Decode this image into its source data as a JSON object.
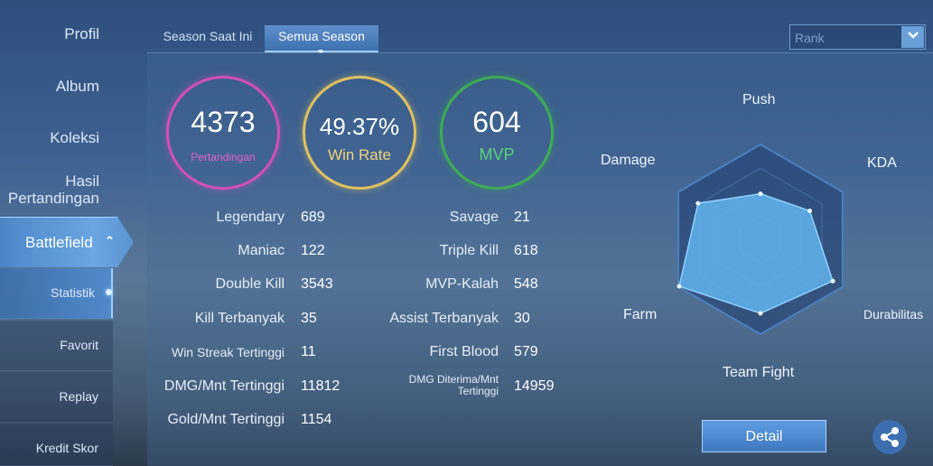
{
  "sidebar": {
    "profil": "Profil",
    "album": "Album",
    "koleksi": "Koleksi",
    "hasil": "Hasil Pertandingan",
    "battlefield": "Battlefield",
    "sub": {
      "statistik": "Statistik",
      "favorit": "Favorit",
      "replay": "Replay",
      "kredit": "Kredit Skor"
    }
  },
  "tabs": {
    "current": "Season Saat Ini",
    "all": "Semua Season"
  },
  "dropdown": {
    "value": "Rank"
  },
  "summary": {
    "matches": {
      "value": "4373",
      "label": "Pertandingan"
    },
    "winrate": {
      "value": "49.37%",
      "label": "Win Rate"
    },
    "mvp": {
      "value": "604",
      "label": "MVP"
    }
  },
  "stats_left": [
    {
      "label": "Legendary",
      "value": "689"
    },
    {
      "label": "Maniac",
      "value": "122"
    },
    {
      "label": "Double Kill",
      "value": "3543"
    },
    {
      "label": "Kill Terbanyak",
      "value": "35"
    },
    {
      "label": "Win Streak Tertinggi",
      "value": "11"
    },
    {
      "label": "DMG/Mnt Tertinggi",
      "value": "11812"
    },
    {
      "label": "Gold/Mnt Tertinggi",
      "value": "1154"
    }
  ],
  "stats_right": [
    {
      "label": "Savage",
      "value": "21"
    },
    {
      "label": "Triple Kill",
      "value": "618"
    },
    {
      "label": "MVP-Kalah",
      "value": "548"
    },
    {
      "label": "Assist Terbanyak",
      "value": "30"
    },
    {
      "label": "First Blood",
      "value": "579"
    },
    {
      "label": "DMG Diterima/Mnt Tertinggi",
      "value": "14959"
    }
  ],
  "radar": {
    "labels": {
      "push": "Push",
      "kda": "KDA",
      "durabilitas": "Durabilitas",
      "teamfight": "Team Fight",
      "farm": "Farm",
      "damage": "Damage"
    },
    "values": {
      "push": 0.48,
      "kda": 0.6,
      "durabilitas": 0.88,
      "teamfight": 0.78,
      "farm": 0.99,
      "damage": 0.76
    }
  },
  "buttons": {
    "detail": "Detail"
  },
  "icons": {
    "share": "share-icon",
    "dropdown": "chevron-down-icon",
    "expand": "chevron-up-icon"
  }
}
